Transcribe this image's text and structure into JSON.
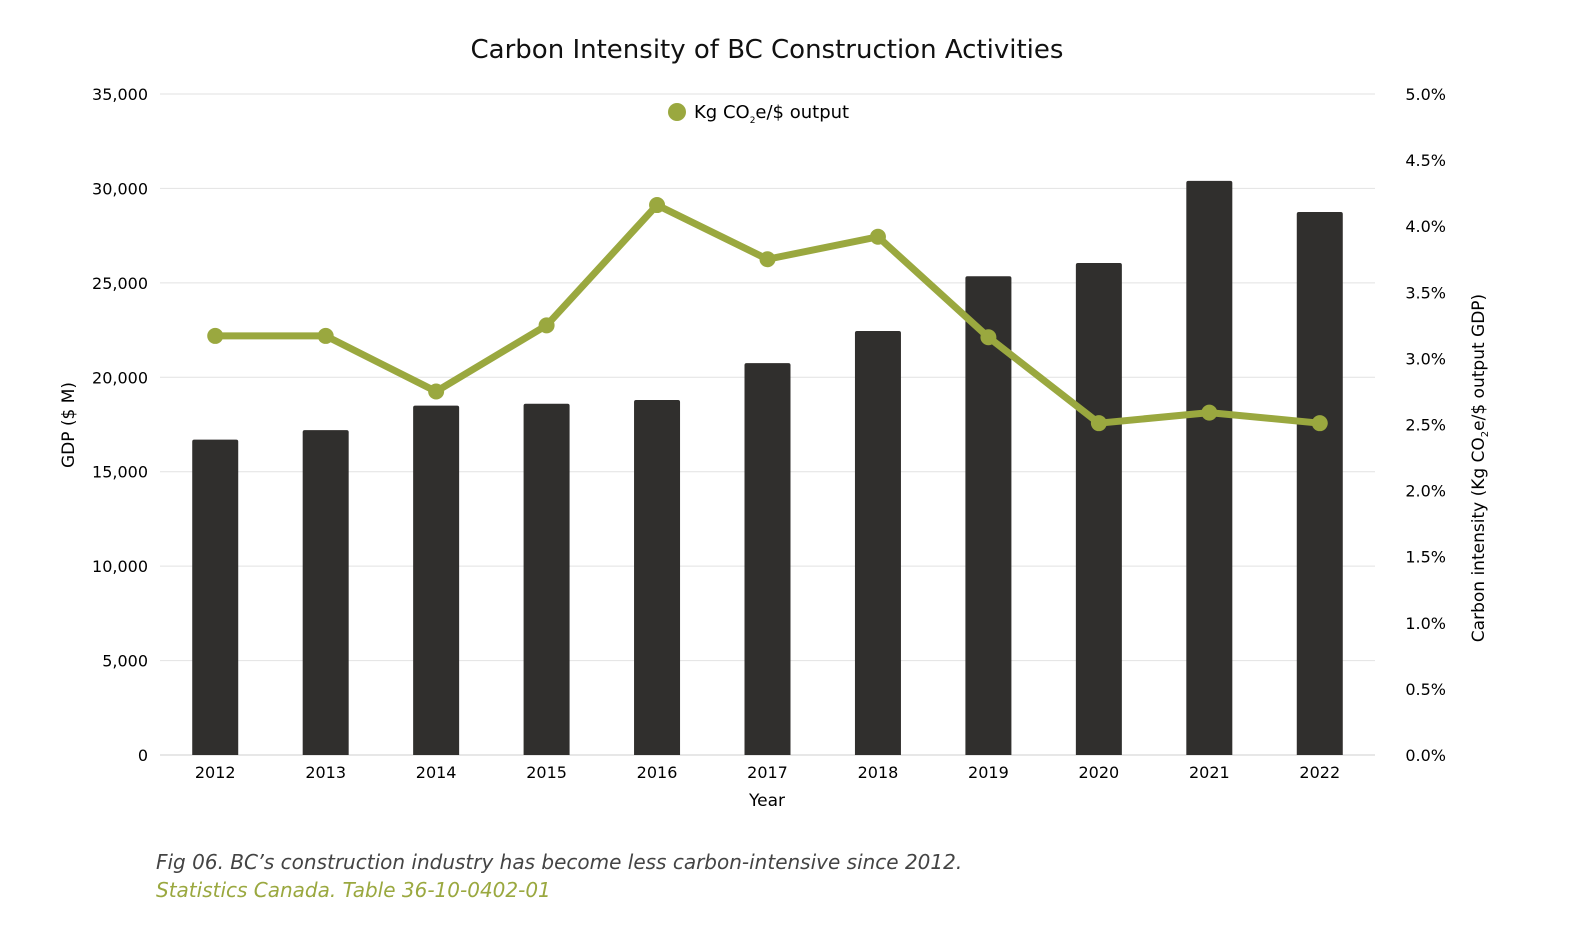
{
  "chart_data": {
    "type": "bar+line",
    "title": "Carbon Intensity of BC Construction Activities",
    "xlabel": "Year",
    "ylabel": "GDP ($ M)",
    "y2label": "Carbon intensity (Kg CO2e/$ output GDP)",
    "categories": [
      "2012",
      "2013",
      "2014",
      "2015",
      "2016",
      "2017",
      "2018",
      "2019",
      "2020",
      "2021",
      "2022"
    ],
    "ylim": [
      0,
      35000
    ],
    "yticks": [
      "0",
      "5,000",
      "10,000",
      "15,000",
      "20,000",
      "25,000",
      "30,000",
      "35,000"
    ],
    "y2lim": [
      0,
      5.0
    ],
    "y2ticks": [
      "0.0%",
      "0.5%",
      "1.0%",
      "1.5%",
      "2.0%",
      "2.5%",
      "3.0%",
      "3.5%",
      "4.0%",
      "4.5%",
      "5.0%"
    ],
    "grid": true,
    "legend_placement": "top-center",
    "series": [
      {
        "type": "bar",
        "axis": "left",
        "color": "#302f2d",
        "values": [
          16700,
          17200,
          18500,
          18600,
          18800,
          20750,
          22450,
          25350,
          26050,
          30400,
          28750
        ]
      },
      {
        "type": "line",
        "axis": "right",
        "name": "Kg CO2e/$ output",
        "color": "#9aa83f",
        "unit": "%",
        "values": [
          3.17,
          3.17,
          2.75,
          3.25,
          4.16,
          3.75,
          3.92,
          3.16,
          2.51,
          2.59,
          2.51
        ]
      }
    ]
  },
  "legend": {
    "prefix": "Kg CO",
    "sub": "2",
    "suffix": "e/$ output"
  },
  "y2label_parts": {
    "prefix": "Carbon intensity (Kg CO",
    "sub": "2",
    "suffix": "e/$ output GDP)"
  },
  "caption": {
    "text": "Fig 06. BC’s construction industry has become less carbon-intensive since 2012.",
    "source": "Statistics Canada. Table 36-10-0402-01"
  }
}
